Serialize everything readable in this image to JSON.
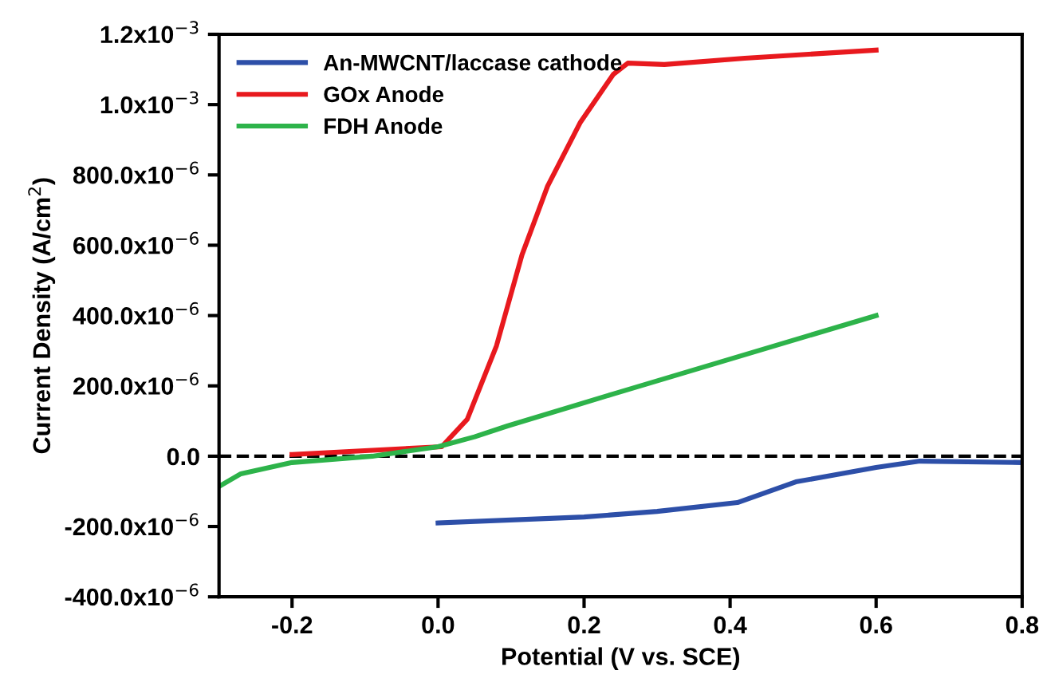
{
  "chart_data": {
    "type": "line",
    "xlabel": "Potential (V vs. SCE)",
    "ylabel": "Current Density (A/cm$^{2}$)",
    "xlim": [
      -0.3,
      0.8
    ],
    "xticks": [
      {
        "value": -0.2,
        "label": "-0.2"
      },
      {
        "value": 0,
        "label": "0.0"
      },
      0.2,
      0.4,
      0.6,
      0.8
    ],
    "ylim": [
      -0.0004,
      0.0012
    ],
    "yticks": [
      {
        "value": -0.0004,
        "label": "-400.0x10$^{−6}$"
      },
      {
        "value": -0.0002,
        "label": "-200.0x10$^{−6}$"
      },
      {
        "value": 0,
        "label": "0.0"
      },
      {
        "value": 0.0002,
        "label": "200.0x10$^{−6}$"
      },
      {
        "value": 0.0004,
        "label": "400.0x10$^{−6}$"
      },
      {
        "value": 0.0006,
        "label": "600.0x10$^{−6}$"
      },
      {
        "value": 0.0008,
        "label": "800.0x10$^{−6}$"
      },
      {
        "value": 0.001,
        "label": "1.0x10$^{−3}$"
      },
      {
        "value": 0.0012,
        "label": "1.2x10$^{−3}$"
      }
    ],
    "grid": false,
    "legend": "top left",
    "marker": "none",
    "line_style": "solid",
    "ref_lines": [
      {
        "axis": "y",
        "value": 0,
        "color": "#000000",
        "line_style": "dashed"
      }
    ],
    "series": [
      {
        "name": "An-MWCNT/laccase cathode",
        "color": "#2d4fa8",
        "x": [
          0,
          0.2,
          0.3,
          0.41,
          0.49,
          0.6,
          0.66,
          0.8
        ],
        "values": [
          -0.00019,
          -0.000173,
          -0.000157,
          -0.000132,
          -7.3e-05,
          -3.2e-05,
          -1.4e-05,
          -1.8e-05
        ]
      },
      {
        "name": "GOx Anode",
        "color": "#e8191e",
        "x": [
          -0.2,
          0.005,
          0.04,
          0.08,
          0.115,
          0.15,
          0.195,
          0.24,
          0.26,
          0.31,
          0.42,
          0.6
        ],
        "values": [
          5e-06,
          2.7e-05,
          0.000105,
          0.000314,
          0.000573,
          0.000768,
          0.00095,
          0.001086,
          0.001118,
          0.001114,
          0.001132,
          0.001155
        ]
      },
      {
        "name": "FDH Anode",
        "color": "#2db34a",
        "x": [
          -0.3,
          -0.27,
          -0.2,
          -0.09,
          0,
          0.05,
          0.095,
          0.24,
          0.6
        ],
        "values": [
          -8.6e-05,
          -5e-05,
          -1.8e-05,
          0,
          2.7e-05,
          5.5e-05,
          8.6e-05,
          0.000177,
          0.0004
        ]
      }
    ]
  }
}
